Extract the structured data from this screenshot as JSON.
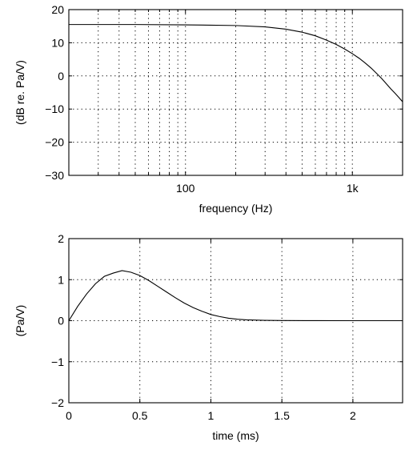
{
  "chart_data": [
    {
      "type": "line",
      "title": "",
      "xlabel": "frequency (Hz)",
      "ylabel": "(dB re. Pa/V)",
      "x_scale": "log",
      "xlim": [
        20,
        2000
      ],
      "ylim": [
        -30,
        20
      ],
      "grid": true,
      "x_ticks": [
        {
          "value": 100,
          "label": "100"
        },
        {
          "value": 1000,
          "label": "1k"
        }
      ],
      "y_ticks": [
        {
          "value": 20,
          "label": "20"
        },
        {
          "value": 10,
          "label": "10"
        },
        {
          "value": 0,
          "label": "0"
        },
        {
          "value": -10,
          "label": "−10"
        },
        {
          "value": -20,
          "label": "−20"
        },
        {
          "value": -30,
          "label": "−30"
        }
      ],
      "series": [
        {
          "x": [
            20,
            50,
            100,
            200,
            300,
            400,
            500,
            600,
            700,
            800,
            900,
            1000,
            1100,
            1200,
            1300,
            1400,
            1500,
            1600,
            1700,
            1800,
            1900,
            2000
          ],
          "y": [
            15.5,
            15.5,
            15.4,
            15.2,
            14.8,
            14.1,
            13.2,
            12.1,
            10.8,
            9.5,
            8.1,
            6.7,
            5.3,
            3.8,
            2.3,
            0.7,
            -0.8,
            -2.4,
            -3.9,
            -5.2,
            -6.5,
            -7.8
          ]
        }
      ]
    },
    {
      "type": "line",
      "title": "",
      "xlabel": "time (ms)",
      "ylabel": "(Pa/V)",
      "xlim": [
        0,
        2.35
      ],
      "ylim": [
        -2,
        2
      ],
      "grid": true,
      "x_ticks": [
        {
          "value": 0,
          "label": "0"
        },
        {
          "value": 0.5,
          "label": "0.5"
        },
        {
          "value": 1,
          "label": "1"
        },
        {
          "value": 1.5,
          "label": "1.5"
        },
        {
          "value": 2,
          "label": "2"
        }
      ],
      "y_ticks": [
        {
          "value": 2,
          "label": "2"
        },
        {
          "value": 1,
          "label": "1"
        },
        {
          "value": 0,
          "label": "0"
        },
        {
          "value": -1,
          "label": "−1"
        },
        {
          "value": -2,
          "label": "−2"
        }
      ],
      "series": [
        {
          "x": [
            0,
            0.0625,
            0.125,
            0.1875,
            0.25,
            0.3125,
            0.375,
            0.4375,
            0.5,
            0.5625,
            0.625,
            0.6875,
            0.75,
            0.8125,
            0.875,
            0.9375,
            1.0,
            1.0625,
            1.125,
            1.1875,
            1.25,
            1.375,
            1.5,
            1.75,
            2.0,
            2.35
          ],
          "y": [
            0,
            0.35,
            0.65,
            0.9,
            1.08,
            1.16,
            1.22,
            1.18,
            1.1,
            0.98,
            0.84,
            0.7,
            0.56,
            0.43,
            0.32,
            0.23,
            0.15,
            0.1,
            0.06,
            0.035,
            0.02,
            0.008,
            0.003,
            0.001,
            0,
            0
          ]
        }
      ]
    }
  ]
}
